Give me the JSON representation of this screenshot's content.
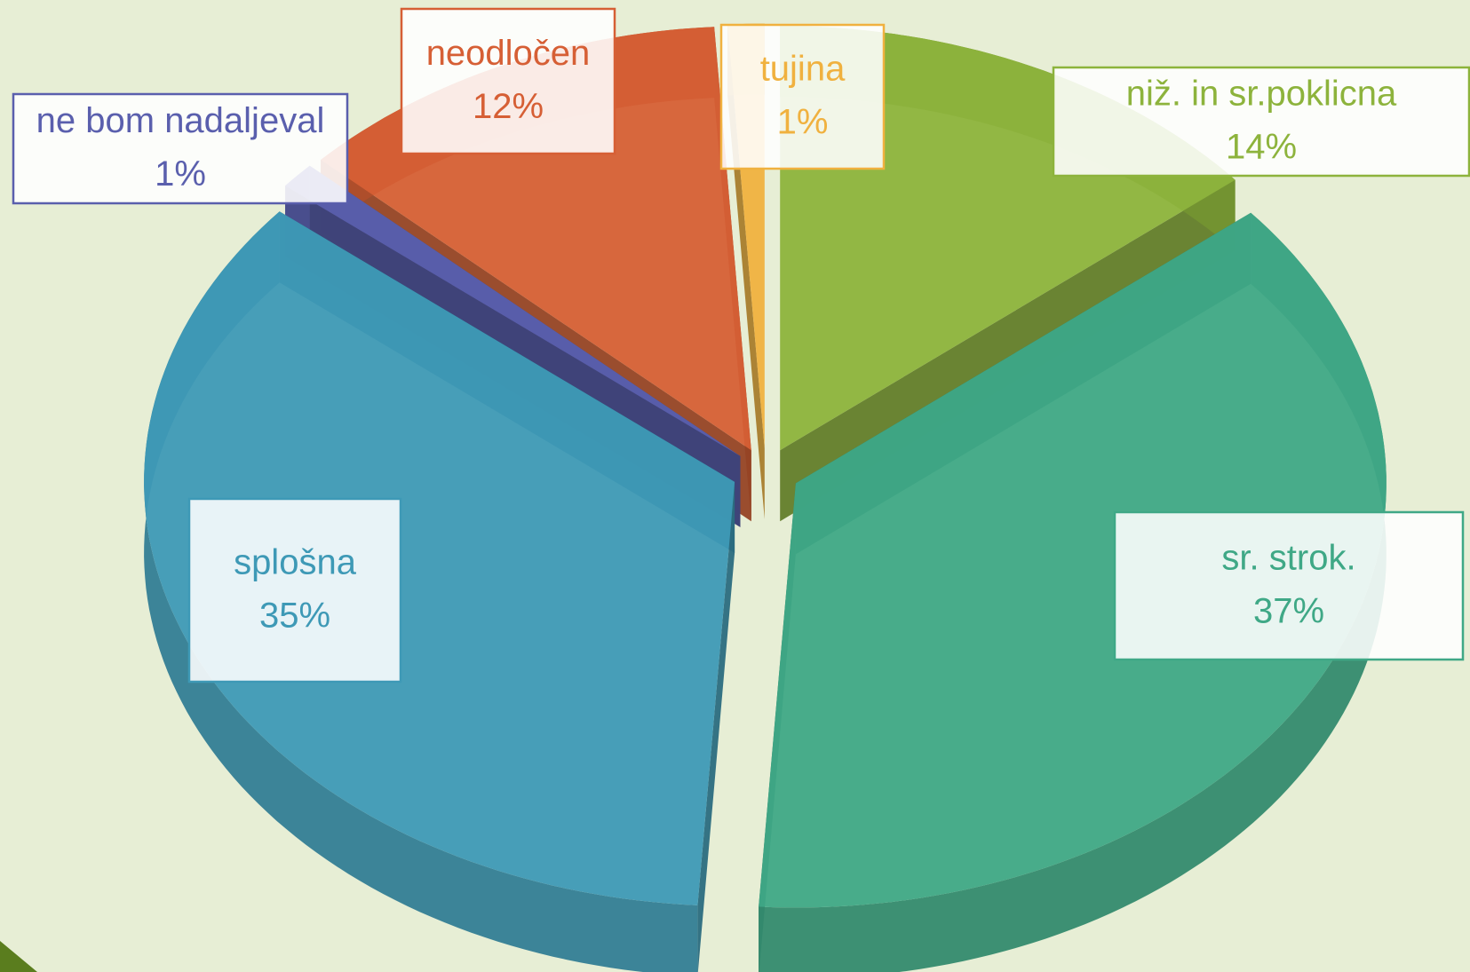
{
  "chart_data": {
    "type": "pie",
    "categories": [
      "niž. in sr.poklicna",
      "sr. strok.",
      "splošna",
      "ne bom nadaljeval",
      "neodločen",
      "tujina"
    ],
    "values": [
      14,
      37,
      35,
      1,
      12,
      1
    ],
    "value_labels": [
      "14%",
      "37%",
      "35%",
      "1%",
      "12%",
      "1%"
    ],
    "colors": [
      "#8db33c",
      "#3fa886",
      "#3e99b6",
      "#5a5fad",
      "#d65f35",
      "#f0b13f"
    ]
  }
}
